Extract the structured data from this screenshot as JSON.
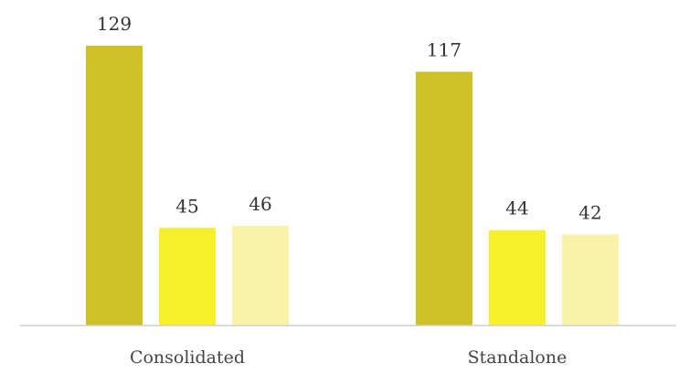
{
  "chart_data": {
    "type": "bar",
    "title": "",
    "xlabel": "",
    "ylabel": "",
    "categories": [
      "Consolidated",
      "Standalone"
    ],
    "series": [
      {
        "values": [
          129,
          117
        ],
        "color": "#CEC127"
      },
      {
        "values": [
          45,
          44
        ],
        "color": "#F7EE2C"
      },
      {
        "values": [
          46,
          42
        ],
        "color": "#F8F3A8"
      }
    ],
    "ylim": [
      0,
      129
    ],
    "grid": false,
    "legend": "none"
  }
}
